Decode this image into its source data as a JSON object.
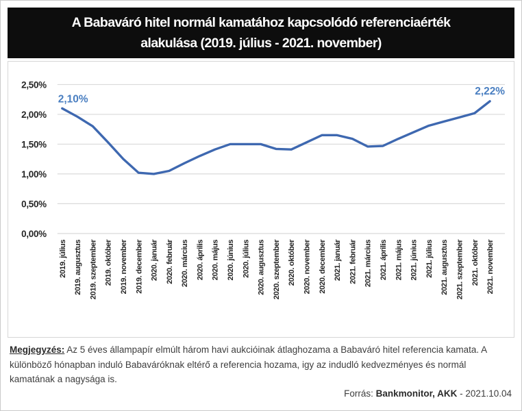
{
  "header": {
    "title_line1": "A Babaváró hitel normál kamatához kapcsolódó referenciaérték",
    "title_line2": "alakulása (2019. július - 2021. november)"
  },
  "chart_data": {
    "type": "line",
    "title": "A Babaváró hitel normál kamatához kapcsolódó referenciaérték alakulása (2019. július - 2021. november)",
    "categories": [
      "2019. július",
      "2019. augusztus",
      "2019. szeptember",
      "2019. október",
      "2019. november",
      "2019. december",
      "2020. január",
      "2020. február",
      "2020. március",
      "2020. április",
      "2020. május",
      "2020. június",
      "2020. július",
      "2020. augusztus",
      "2020. szeptember",
      "2020. október",
      "2020. november",
      "2020. december",
      "2021. január",
      "2021. február",
      "2021. március",
      "2021. április",
      "2021. május",
      "2021. június",
      "2021. július",
      "2021. augusztus",
      "2021. szeptember",
      "2021. október",
      "2021. november"
    ],
    "values": [
      2.1,
      1.96,
      1.8,
      1.53,
      1.25,
      1.02,
      1.0,
      1.05,
      1.18,
      1.3,
      1.41,
      1.5,
      1.5,
      1.5,
      1.42,
      1.41,
      1.53,
      1.65,
      1.65,
      1.59,
      1.46,
      1.47,
      1.59,
      1.7,
      1.81,
      1.88,
      1.95,
      2.02,
      2.22
    ],
    "xlabel": "",
    "ylabel": "",
    "ylim": [
      0,
      2.5
    ],
    "ytick_labels": [
      "0,00%",
      "0,50%",
      "1,00%",
      "1,50%",
      "2,00%",
      "2,50%"
    ],
    "grid": true,
    "legend": "none",
    "first_point_label": "2,10%",
    "last_point_label": "2,22%",
    "line_color": "#3E68B0",
    "point_label_color": "#4A7FC1",
    "grid_color": "#DADADA",
    "axis_text_color": "#262626"
  },
  "note": {
    "label": "Megjegyzés:",
    "text": " Az 5 éves állampapír elmúlt három havi aukcióinak átlaghozama a Babaváró hitel referencia kamata. A különböző hónapban induló Babaváróknak eltérő a referencia hozama, igy az indudló kedvezményes és normál kamatának a nagysága is."
  },
  "source": {
    "prefix": "Forrás: ",
    "bold_text": "Bankmonitor, AKK",
    "suffix": " - 2021.10.04"
  }
}
